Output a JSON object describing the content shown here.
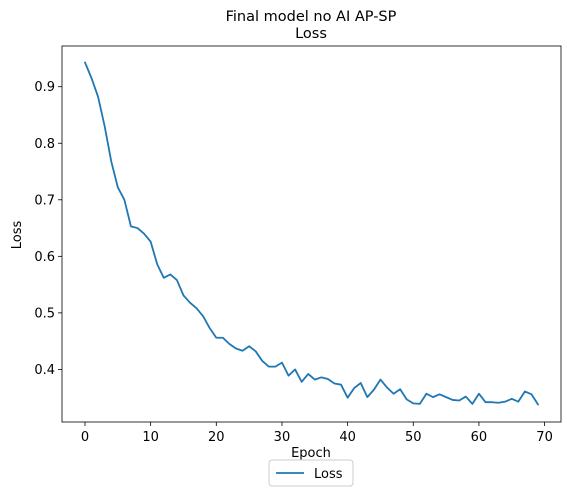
{
  "chart_data": {
    "type": "line",
    "title": "Final model no AI AP-SP",
    "subtitle": "Loss",
    "xlabel": "Epoch",
    "ylabel": "Loss",
    "xlim": [
      -3.5,
      72.5
    ],
    "ylim": [
      0.307,
      0.972
    ],
    "xticks": [
      0,
      10,
      20,
      30,
      40,
      50,
      60,
      70
    ],
    "yticks": [
      0.4,
      0.5,
      0.6,
      0.7,
      0.8,
      0.9
    ],
    "ytick_labels": [
      "0.4",
      "0.5",
      "0.6",
      "0.7",
      "0.8",
      "0.9"
    ],
    "grid": false,
    "legend_position": "below-center",
    "series": [
      {
        "name": "Loss",
        "color": "#1f77b4",
        "x": [
          0,
          1,
          2,
          3,
          4,
          5,
          6,
          7,
          8,
          9,
          10,
          11,
          12,
          13,
          14,
          15,
          16,
          17,
          18,
          19,
          20,
          21,
          22,
          23,
          24,
          25,
          26,
          27,
          28,
          29,
          30,
          31,
          32,
          33,
          34,
          35,
          36,
          37,
          38,
          39,
          40,
          41,
          42,
          43,
          44,
          45,
          46,
          47,
          48,
          49,
          50,
          51,
          52,
          53,
          54,
          55,
          56,
          57,
          58,
          59,
          60,
          61,
          62,
          63,
          64,
          65,
          66,
          67,
          68,
          69
        ],
        "values": [
          0.943,
          0.915,
          0.882,
          0.83,
          0.768,
          0.722,
          0.7,
          0.653,
          0.65,
          0.64,
          0.626,
          0.586,
          0.562,
          0.568,
          0.558,
          0.531,
          0.518,
          0.508,
          0.494,
          0.473,
          0.456,
          0.456,
          0.445,
          0.437,
          0.433,
          0.441,
          0.432,
          0.415,
          0.405,
          0.405,
          0.412,
          0.389,
          0.4,
          0.378,
          0.392,
          0.382,
          0.386,
          0.383,
          0.375,
          0.373,
          0.35,
          0.367,
          0.376,
          0.351,
          0.364,
          0.382,
          0.368,
          0.357,
          0.365,
          0.347,
          0.34,
          0.339,
          0.357,
          0.351,
          0.356,
          0.351,
          0.346,
          0.345,
          0.352,
          0.339,
          0.357,
          0.342,
          0.342,
          0.341,
          0.343,
          0.348,
          0.343,
          0.361,
          0.356,
          0.338
        ]
      }
    ]
  }
}
